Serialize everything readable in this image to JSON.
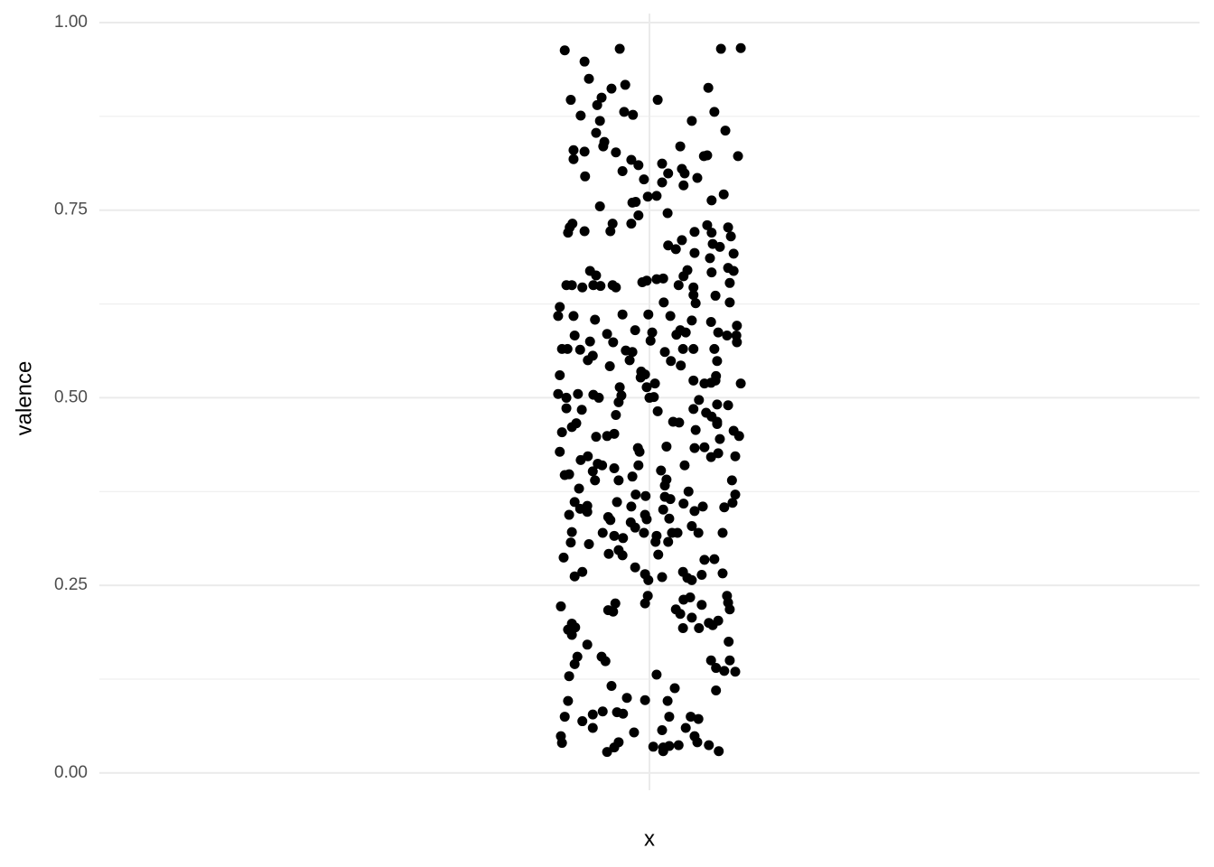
{
  "chart_data": {
    "type": "scatter",
    "xlabel": "x",
    "ylabel": "valence",
    "color": "#000000",
    "grid": true,
    "xlim": [
      -1,
      1
    ],
    "ylim": [
      -0.023,
      1.012
    ],
    "xticks": [
      {
        "value": 0,
        "label": null
      }
    ],
    "yticks": [
      {
        "value": 0,
        "label": "0.00"
      },
      {
        "value": 0.25,
        "label": "0.25"
      },
      {
        "value": 0.5,
        "label": "0.50"
      },
      {
        "value": 0.75,
        "label": "0.75"
      },
      {
        "value": 1,
        "label": "1.00"
      }
    ],
    "minor_yticks": [
      0.125,
      0.375,
      0.625,
      0.875
    ],
    "x": [
      -0.154,
      -0.054,
      0.13,
      0.166,
      -0.118,
      -0.11,
      -0.143,
      -0.044,
      -0.069,
      -0.087,
      0.015,
      0.107,
      -0.095,
      -0.125,
      -0.046,
      -0.03,
      0.118,
      0.077,
      -0.09,
      0.138,
      -0.097,
      -0.082,
      -0.084,
      -0.138,
      -0.118,
      -0.061,
      0.056,
      0.161,
      0.099,
      0.105,
      -0.138,
      -0.033,
      -0.02,
      0.023,
      0.059,
      0.034,
      -0.049,
      -0.117,
      -0.01,
      0.064,
      0.087,
      0.023,
      0.062,
      0.135,
      0.013,
      -0.003,
      0.113,
      -0.025,
      -0.031,
      -0.09,
      0.033,
      -0.02,
      0.105,
      0.143,
      -0.14,
      -0.145,
      -0.067,
      -0.033,
      -0.148,
      -0.118,
      -0.071,
      0.082,
      0.113,
      0.148,
      0.115,
      0.128,
      0.034,
      0.048,
      0.059,
      0.082,
      0.153,
      0.11,
      0.143,
      0.153,
      0.069,
      -0.108,
      -0.097,
      0.113,
      0.062,
      0.025,
      0.013,
      -0.005,
      -0.013,
      -0.151,
      -0.141,
      -0.122,
      -0.102,
      -0.089,
      -0.067,
      -0.061,
      0.053,
      0.146,
      0.08,
      0.08,
      0.12,
      0.026,
      0.084,
      0.146,
      -0.163,
      -0.166,
      -0.138,
      -0.002,
      -0.049,
      0.038,
      0.077,
      -0.099,
      0.112,
      0.159,
      -0.026,
      0.056,
      0.066,
      0.125,
      0.005,
      -0.077,
      -0.136,
      0.141,
      0.158,
      0.049,
      0.002,
      -0.108,
      0.159,
      -0.066,
      -0.159,
      -0.149,
      -0.126,
      -0.043,
      -0.031,
      0.028,
      0.061,
      0.08,
      0.118,
      -0.036,
      -0.112,
      -0.103,
      0.039,
      0.057,
      0.123,
      -0.072,
      -0.015,
      -0.008,
      -0.163,
      -0.016,
      0.121,
      0.12,
      0.08,
      0.1,
      0.112,
      0.01,
      0.166,
      -0.054,
      -0.005,
      0,
      0.008,
      -0.166,
      -0.151,
      -0.13,
      -0.102,
      -0.092,
      -0.051,
      -0.056,
      0.09,
      0.123,
      0.143,
      -0.151,
      -0.123,
      0.015,
      0.08,
      0.103,
      0.113,
      -0.061,
      0.123,
      0.123,
      0.043,
      0.054,
      -0.133,
      -0.141,
      -0.159,
      0.084,
      -0.064,
      -0.077,
      -0.097,
      0.153,
      0.163,
      0.128,
      -0.021,
      -0.018,
      0.031,
      0.082,
      0.1,
      0.125,
      0.112,
      0.156,
      -0.163,
      -0.112,
      -0.125,
      -0.094,
      -0.086,
      -0.02,
      0.064,
      -0.064,
      -0.103,
      -0.154,
      -0.146,
      0.021,
      -0.056,
      -0.031,
      -0.099,
      0.031,
      0.15,
      0.028,
      -0.128,
      0.071,
      -0.025,
      -0.007,
      0.028,
      0.156,
      0.038,
      -0.136,
      -0.059,
      0.062,
      0.097,
      0.151,
      0.136,
      -0.113,
      -0.126,
      -0.033,
      0.025,
      -0.113,
      0.082,
      -0.146,
      -0.008,
      -0.075,
      0.036,
      -0.005,
      -0.071,
      -0.034,
      0.077,
      -0.026,
      -0.141,
      -0.085,
      -0.064,
      -0.048,
      -0.01,
      0.013,
      0.041,
      0.051,
      0.089,
      0.133,
      0.011,
      0.034,
      -0.143,
      -0.11,
      -0.056,
      -0.049,
      -0.074,
      0.016,
      -0.156,
      0.118,
      0.1,
      -0.026,
      0.061,
      0.133,
      -0.122,
      -0.008,
      -0.136,
      0.095,
      0.069,
      0.023,
      -0.002,
      0.077,
      0.074,
      0.141,
      0.062,
      0.143,
      -0.003,
      -0.008,
      -0.062,
      -0.161,
      0.095,
      0.048,
      0.146,
      -0.075,
      -0.066,
      0.056,
      0.077,
      0.125,
      0.108,
      -0.141,
      0.115,
      -0.135,
      -0.148,
      0.061,
      0.09,
      -0.141,
      0.144,
      -0.113,
      -0.131,
      -0.087,
      0.112,
      -0.08,
      0.146,
      -0.136,
      0.121,
      0.156,
      0.136,
      -0.146,
      0.013,
      -0.069,
      0.046,
      0.121,
      -0.041,
      -0.008,
      0.033,
      -0.148,
      -0.059,
      -0.048,
      -0.085,
      -0.103,
      -0.154,
      0.075,
      0.089,
      0.036,
      -0.122,
      -0.103,
      0.066,
      0.023,
      -0.028,
      0.082,
      -0.161,
      -0.159,
      -0.056,
      0.087,
      0.108,
      0.053,
      0.007,
      0.036,
      0.025,
      -0.064,
      0.025,
      -0.077,
      0.126
    ],
    "values": [
      0.963,
      0.965,
      0.965,
      0.966,
      0.948,
      0.925,
      0.897,
      0.917,
      0.912,
      0.9,
      0.897,
      0.913,
      0.89,
      0.876,
      0.881,
      0.877,
      0.881,
      0.869,
      0.869,
      0.856,
      0.853,
      0.841,
      0.835,
      0.83,
      0.828,
      0.827,
      0.835,
      0.822,
      0.822,
      0.823,
      0.818,
      0.817,
      0.81,
      0.812,
      0.805,
      0.799,
      0.802,
      0.795,
      0.791,
      0.799,
      0.793,
      0.787,
      0.783,
      0.771,
      0.769,
      0.768,
      0.763,
      0.761,
      0.76,
      0.755,
      0.746,
      0.743,
      0.73,
      0.727,
      0.732,
      0.727,
      0.732,
      0.732,
      0.72,
      0.722,
      0.722,
      0.721,
      0.72,
      0.715,
      0.705,
      0.701,
      0.703,
      0.698,
      0.71,
      0.693,
      0.692,
      0.686,
      0.673,
      0.669,
      0.67,
      0.669,
      0.663,
      0.667,
      0.662,
      0.659,
      0.658,
      0.656,
      0.654,
      0.65,
      0.65,
      0.647,
      0.65,
      0.649,
      0.65,
      0.647,
      0.65,
      0.653,
      0.647,
      0.637,
      0.636,
      0.627,
      0.626,
      0.627,
      0.621,
      0.609,
      0.609,
      0.611,
      0.611,
      0.609,
      0.603,
      0.604,
      0.601,
      0.596,
      0.59,
      0.59,
      0.587,
      0.587,
      0.587,
      0.585,
      0.583,
      0.583,
      0.583,
      0.584,
      0.576,
      0.575,
      0.574,
      0.574,
      0.565,
      0.565,
      0.564,
      0.563,
      0.561,
      0.561,
      0.565,
      0.565,
      0.565,
      0.55,
      0.55,
      0.556,
      0.549,
      0.543,
      0.549,
      0.542,
      0.535,
      0.531,
      0.53,
      0.527,
      0.529,
      0.523,
      0.523,
      0.519,
      0.52,
      0.519,
      0.519,
      0.514,
      0.514,
      0.5,
      0.501,
      0.505,
      0.5,
      0.505,
      0.504,
      0.5,
      0.503,
      0.494,
      0.497,
      0.491,
      0.49,
      0.486,
      0.484,
      0.482,
      0.485,
      0.48,
      0.475,
      0.477,
      0.468,
      0.465,
      0.468,
      0.467,
      0.466,
      0.461,
      0.454,
      0.457,
      0.452,
      0.449,
      0.448,
      0.456,
      0.449,
      0.445,
      0.433,
      0.428,
      0.435,
      0.433,
      0.434,
      0.426,
      0.421,
      0.422,
      0.428,
      0.422,
      0.417,
      0.412,
      0.41,
      0.41,
      0.41,
      0.406,
      0.402,
      0.397,
      0.398,
      0.403,
      0.39,
      0.395,
      0.39,
      0.391,
      0.39,
      0.383,
      0.379,
      0.375,
      0.371,
      0.369,
      0.368,
      0.371,
      0.365,
      0.361,
      0.361,
      0.359,
      0.355,
      0.36,
      0.354,
      0.356,
      0.352,
      0.355,
      0.351,
      0.348,
      0.349,
      0.344,
      0.344,
      0.341,
      0.339,
      0.338,
      0.337,
      0.334,
      0.329,
      0.327,
      0.321,
      0.32,
      0.316,
      0.313,
      0.32,
      0.316,
      0.32,
      0.32,
      0.32,
      0.32,
      0.308,
      0.308,
      0.307,
      0.305,
      0.297,
      0.29,
      0.292,
      0.291,
      0.287,
      0.285,
      0.284,
      0.274,
      0.268,
      0.266,
      0.268,
      0.265,
      0.262,
      0.264,
      0.26,
      0.261,
      0.257,
      0.257,
      0.234,
      0.236,
      0.231,
      0.227,
      0.236,
      0.226,
      0.226,
      0.222,
      0.224,
      0.218,
      0.218,
      0.217,
      0.215,
      0.212,
      0.207,
      0.203,
      0.2,
      0.199,
      0.197,
      0.194,
      0.191,
      0.193,
      0.193,
      0.184,
      0.175,
      0.171,
      0.155,
      0.155,
      0.15,
      0.149,
      0.15,
      0.145,
      0.14,
      0.135,
      0.136,
      0.129,
      0.131,
      0.116,
      0.113,
      0.11,
      0.1,
      0.097,
      0.096,
      0.096,
      0.081,
      0.079,
      0.082,
      0.078,
      0.075,
      0.075,
      0.072,
      0.075,
      0.069,
      0.06,
      0.06,
      0.057,
      0.054,
      0.049,
      0.049,
      0.04,
      0.041,
      0.041,
      0.037,
      0.037,
      0.035,
      0.036,
      0.034,
      0.034,
      0.029,
      0.028,
      0.029
    ]
  }
}
